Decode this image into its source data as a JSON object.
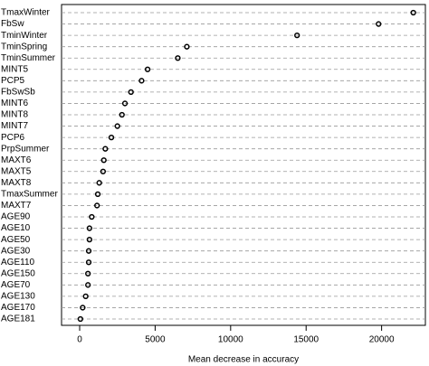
{
  "chart_data": {
    "type": "dot",
    "x_label": "Mean decrease in accuracy",
    "categories": [
      "TmaxWinter",
      "FbSw",
      "TminWinter",
      "TminSpring",
      "TminSummer",
      "MINT5",
      "PCP5",
      "FbSwSb",
      "MINT6",
      "MINT8",
      "MINT7",
      "PCP6",
      "PrpSummer",
      "MAXT6",
      "MAXT5",
      "MAXT8",
      "TmaxSummer",
      "MAXT7",
      "AGE90",
      "AGE10",
      "AGE50",
      "AGE30",
      "AGE110",
      "AGE150",
      "AGE70",
      "AGE130",
      "AGE170",
      "AGE181"
    ],
    "values": [
      22100,
      19800,
      14400,
      7100,
      6500,
      4500,
      4100,
      3400,
      3000,
      2800,
      2500,
      2100,
      1700,
      1600,
      1550,
      1300,
      1200,
      1150,
      800,
      650,
      650,
      600,
      600,
      550,
      550,
      400,
      200,
      50
    ],
    "color": "#000000",
    "xlim": [
      -1200,
      22900
    ],
    "xticks": [
      0,
      5000,
      10000,
      15000,
      20000
    ]
  }
}
